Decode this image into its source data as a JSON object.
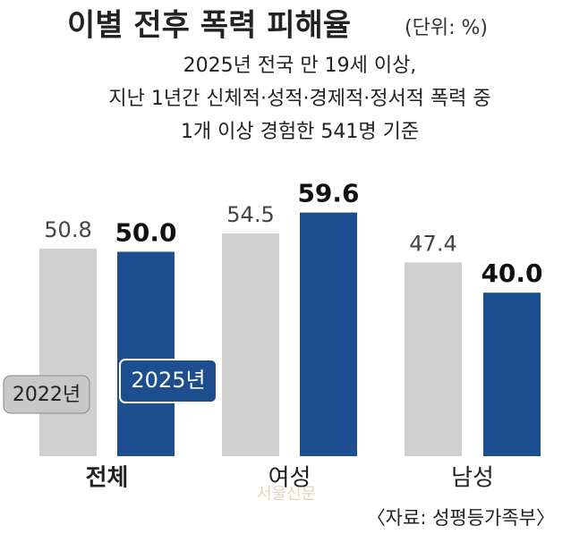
{
  "chart_data": {
    "type": "bar",
    "title": "이별 전후 폭력 피해율",
    "unit": "(단위: %)",
    "subtitle": [
      "2025년 전국 만 19세 이상,",
      "지난 1년간 신체적·성적·경제적·정서적 폭력 중",
      "1개 이상 경험한 541명 기준"
    ],
    "categories": [
      "전체",
      "여성",
      "남성"
    ],
    "series": [
      {
        "name": "2022년",
        "color": "#d0d0d0",
        "values": [
          50.8,
          54.5,
          47.4
        ]
      },
      {
        "name": "2025년",
        "color": "#1d4e8f",
        "values": [
          50.0,
          59.6,
          40.0
        ],
        "value_labels": [
          "50.0",
          "59.6",
          "40.0"
        ]
      }
    ],
    "watermark": "서울신문",
    "source": "〈자료: 성평등가족부〉"
  }
}
